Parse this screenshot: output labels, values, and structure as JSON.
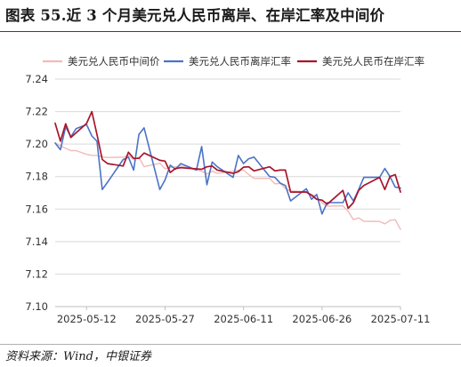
{
  "title": "图表 55.近 3 个月美元兑人民币离岸、在岸汇率及中间价",
  "source": "资料来源：Wind，中银证券",
  "colors": {
    "title_rule": "#9a1b22",
    "mid": "#f2b9b9",
    "offshore": "#4a74c6",
    "onshore": "#a8152c",
    "grid": "#d9d9d9"
  },
  "chart_data": {
    "type": "line",
    "legend_position": "top",
    "grid": "horizontal",
    "ylim": [
      7.1,
      7.24
    ],
    "yticks": [
      7.1,
      7.12,
      7.14,
      7.16,
      7.18,
      7.2,
      7.22,
      7.24
    ],
    "ytick_labels": [
      "7.10",
      "7.12",
      "7.14",
      "7.16",
      "7.18",
      "7.20",
      "7.22",
      "7.24"
    ],
    "xlim": [
      "2025-05-06",
      "2025-07-11"
    ],
    "xticks": [
      "2025-05-12",
      "2025-05-27",
      "2025-06-11",
      "2025-06-26",
      "2025-07-11"
    ],
    "series": [
      {
        "name": "美元兑人民币中间价",
        "color": "#f2b9b9",
        "x": [
          "2025-05-06",
          "2025-05-07",
          "2025-05-08",
          "2025-05-09",
          "2025-05-10",
          "2025-05-12",
          "2025-05-13",
          "2025-05-14",
          "2025-05-15",
          "2025-05-16",
          "2025-05-19",
          "2025-05-20",
          "2025-05-21",
          "2025-05-22",
          "2025-05-23",
          "2025-05-26",
          "2025-05-27",
          "2025-05-28",
          "2025-05-29",
          "2025-05-30",
          "2025-06-03",
          "2025-06-04",
          "2025-06-05",
          "2025-06-06",
          "2025-06-09",
          "2025-06-10",
          "2025-06-11",
          "2025-06-12",
          "2025-06-13",
          "2025-06-16",
          "2025-06-17",
          "2025-06-18",
          "2025-06-19",
          "2025-06-20",
          "2025-06-23",
          "2025-06-24",
          "2025-06-25",
          "2025-06-26",
          "2025-06-27",
          "2025-06-30",
          "2025-07-01",
          "2025-07-02",
          "2025-07-03",
          "2025-07-04",
          "2025-07-07",
          "2025-07-08",
          "2025-07-09",
          "2025-07-10",
          "2025-07-11"
        ],
        "values": [
          7.2008,
          7.1989,
          7.1974,
          7.196,
          7.196,
          7.1937,
          7.1931,
          7.193,
          7.1922,
          7.1917,
          7.192,
          7.1932,
          7.1903,
          7.1919,
          7.1861,
          7.1882,
          7.1848,
          7.1855,
          7.186,
          7.1865,
          7.1833,
          7.1816,
          7.1833,
          7.182,
          7.1833,
          7.184,
          7.184,
          7.1812,
          7.1789,
          7.1789,
          7.1755,
          7.1758,
          7.1727,
          7.1711,
          7.1707,
          7.1689,
          7.1679,
          7.1638,
          7.1618,
          7.162,
          7.1586,
          7.1535,
          7.1546,
          7.1525,
          7.1524,
          7.1509,
          7.1531,
          7.1535,
          7.1475
        ]
      },
      {
        "name": "美元兑人民币离岸汇率",
        "color": "#4a74c6",
        "x": [
          "2025-05-06",
          "2025-05-07",
          "2025-05-08",
          "2025-05-09",
          "2025-05-10",
          "2025-05-12",
          "2025-05-13",
          "2025-05-14",
          "2025-05-15",
          "2025-05-16",
          "2025-05-19",
          "2025-05-20",
          "2025-05-21",
          "2025-05-22",
          "2025-05-23",
          "2025-05-26",
          "2025-05-27",
          "2025-05-28",
          "2025-05-29",
          "2025-05-30",
          "2025-06-02",
          "2025-06-03",
          "2025-06-04",
          "2025-06-05",
          "2025-06-06",
          "2025-06-09",
          "2025-06-10",
          "2025-06-11",
          "2025-06-12",
          "2025-06-13",
          "2025-06-16",
          "2025-06-17",
          "2025-06-18",
          "2025-06-19",
          "2025-06-20",
          "2025-06-23",
          "2025-06-24",
          "2025-06-25",
          "2025-06-26",
          "2025-06-27",
          "2025-06-30",
          "2025-07-01",
          "2025-07-02",
          "2025-07-03",
          "2025-07-04",
          "2025-07-07",
          "2025-07-08",
          "2025-07-09",
          "2025-07-10",
          "2025-07-11"
        ],
        "values": [
          7.2006,
          7.1965,
          7.2107,
          7.2045,
          7.2095,
          7.212,
          7.205,
          7.2017,
          7.172,
          7.1765,
          7.1905,
          7.192,
          7.184,
          7.206,
          7.21,
          7.172,
          7.178,
          7.187,
          7.1845,
          7.188,
          7.184,
          7.1985,
          7.175,
          7.189,
          7.186,
          7.1795,
          7.193,
          7.188,
          7.191,
          7.192,
          7.18,
          7.1795,
          7.176,
          7.1745,
          7.165,
          7.1725,
          7.166,
          7.169,
          7.157,
          7.164,
          7.164,
          7.17,
          7.165,
          7.172,
          7.1795,
          7.1795,
          7.185,
          7.18,
          7.1735,
          7.173
        ]
      },
      {
        "name": "美元兑人民币在岸汇率",
        "color": "#a8152c",
        "x": [
          "2025-05-06",
          "2025-05-07",
          "2025-05-08",
          "2025-05-09",
          "2025-05-12",
          "2025-05-13",
          "2025-05-14",
          "2025-05-15",
          "2025-05-16",
          "2025-05-19",
          "2025-05-20",
          "2025-05-21",
          "2025-05-22",
          "2025-05-23",
          "2025-05-26",
          "2025-05-27",
          "2025-05-28",
          "2025-05-29",
          "2025-05-30",
          "2025-06-03",
          "2025-06-04",
          "2025-06-05",
          "2025-06-06",
          "2025-06-09",
          "2025-06-10",
          "2025-06-11",
          "2025-06-12",
          "2025-06-13",
          "2025-06-16",
          "2025-06-17",
          "2025-06-18",
          "2025-06-19",
          "2025-06-20",
          "2025-06-23",
          "2025-06-24",
          "2025-06-25",
          "2025-06-26",
          "2025-06-27",
          "2025-06-30",
          "2025-07-01",
          "2025-07-02",
          "2025-07-03",
          "2025-07-04",
          "2025-07-07",
          "2025-07-08",
          "2025-07-09",
          "2025-07-10",
          "2025-07-11"
        ],
        "values": [
          7.2128,
          7.2018,
          7.2125,
          7.204,
          7.2127,
          7.22,
          7.2058,
          7.1905,
          7.188,
          7.1865,
          7.195,
          7.1912,
          7.1912,
          7.1945,
          7.19,
          7.1895,
          7.1825,
          7.185,
          7.1855,
          7.1845,
          7.186,
          7.1865,
          7.184,
          7.182,
          7.183,
          7.1858,
          7.186,
          7.1835,
          7.186,
          7.1835,
          7.184,
          7.184,
          7.1705,
          7.1705,
          7.1685,
          7.166,
          7.1655,
          7.163,
          7.1715,
          7.1605,
          7.164,
          7.1715,
          7.1745,
          7.1795,
          7.172,
          7.18,
          7.1812,
          7.1705
        ]
      }
    ]
  }
}
